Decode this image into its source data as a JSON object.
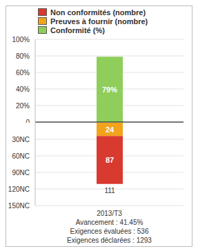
{
  "chart_data": [
    {
      "type": "bar",
      "stacked": true,
      "categories": [
        "2013/T3"
      ],
      "series": [
        {
          "name": "Conformité (%)",
          "color": "#8fce5a",
          "values": [
            79
          ],
          "value_labels": [
            "79%"
          ]
        }
      ],
      "ylim": [
        0,
        100
      ],
      "yticks": [
        0,
        {
          "value": 20,
          "label": "20%"
        },
        {
          "value": 40,
          "label": "40%"
        },
        {
          "value": 60,
          "label": "60%"
        },
        {
          "value": 80,
          "label": "80%"
        },
        {
          "value": 100,
          "label": "100%"
        }
      ],
      "grid": true,
      "data_labels": true,
      "legend": "top",
      "tick_labels": "y"
    },
    {
      "type": "bar",
      "stacked": true,
      "categories": [
        "2013/T3"
      ],
      "series": [
        {
          "name": "Preuves à fournir (nombre)",
          "color": "#f2a31c",
          "values": [
            24
          ]
        },
        {
          "name": "Non conformités (nombre)",
          "color": "#d83a30",
          "values": [
            87
          ]
        }
      ],
      "totals": [
        111
      ],
      "ylim": [
        0,
        150
      ],
      "yticks": [
        {
          "value": 30,
          "label": "30NC"
        },
        {
          "value": 60,
          "label": "60NC"
        },
        {
          "value": 90,
          "label": "90NC"
        },
        {
          "value": 120,
          "label": "120NC"
        },
        {
          "value": 150,
          "label": "150NC"
        }
      ],
      "grid": true,
      "data_labels": true
    }
  ],
  "footer": [
    "Avancement : 41.45%",
    "Exigences évaluées : 536",
    "Exigences déclarées : 1293"
  ]
}
